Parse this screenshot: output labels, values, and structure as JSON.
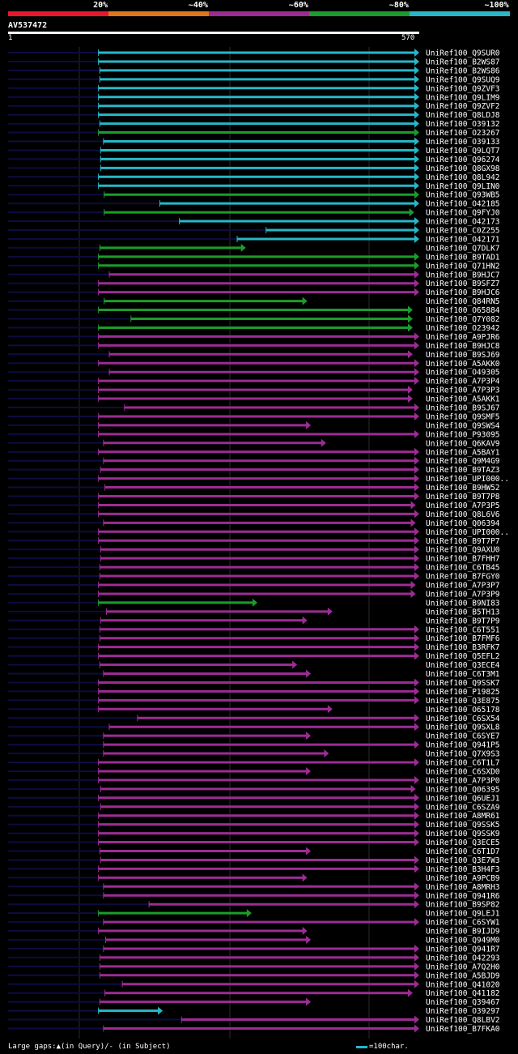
{
  "legend": {
    "labels": [
      "20%",
      "~40%",
      "~60%",
      "~80%",
      "~100%"
    ],
    "colors": [
      "#e8182c",
      "#e0761c",
      "#9c2c94",
      "#1c9c2c",
      "#27b7c8"
    ]
  },
  "query": {
    "id": "AV537472",
    "start": "1",
    "end": "570",
    "length": 570
  },
  "hits": [
    {
      "name": "UniRef100_Q9SUR0",
      "s": 126,
      "e": 570,
      "c": 4
    },
    {
      "name": "UniRef100_B2WS87",
      "s": 126,
      "e": 570,
      "c": 4
    },
    {
      "name": "UniRef100_B2WS86",
      "s": 128,
      "e": 570,
      "c": 4
    },
    {
      "name": "UniRef100_Q9SUQ9",
      "s": 128,
      "e": 570,
      "c": 4
    },
    {
      "name": "UniRef100_Q9ZVF3",
      "s": 126,
      "e": 570,
      "c": 4
    },
    {
      "name": "UniRef100_Q9LIM9",
      "s": 126,
      "e": 570,
      "c": 4
    },
    {
      "name": "UniRef100_Q9ZVF2",
      "s": 126,
      "e": 570,
      "c": 4
    },
    {
      "name": "UniRef100_Q8LDJ8",
      "s": 126,
      "e": 570,
      "c": 4
    },
    {
      "name": "UniRef100_O39132",
      "s": 128,
      "e": 570,
      "c": 4
    },
    {
      "name": "UniRef100_O23267",
      "s": 126,
      "e": 570,
      "c": 3
    },
    {
      "name": "UniRef100_O39133",
      "s": 133,
      "e": 570,
      "c": 4
    },
    {
      "name": "UniRef100_Q9LQT7",
      "s": 129,
      "e": 570,
      "c": 4
    },
    {
      "name": "UniRef100_Q96274",
      "s": 129,
      "e": 570,
      "c": 4
    },
    {
      "name": "UniRef100_Q8GX98",
      "s": 129,
      "e": 570,
      "c": 4
    },
    {
      "name": "UniRef100_Q8L942",
      "s": 126,
      "e": 570,
      "c": 4
    },
    {
      "name": "UniRef100_Q9LIN0",
      "s": 126,
      "e": 570,
      "c": 4
    },
    {
      "name": "UniRef100_Q93WB5",
      "s": 134,
      "e": 570,
      "c": 3
    },
    {
      "name": "UniRef100_O42185",
      "s": 211,
      "e": 570,
      "c": 4
    },
    {
      "name": "UniRef100_Q9FYJ0",
      "s": 134,
      "e": 563,
      "c": 3
    },
    {
      "name": "UniRef100_O42173",
      "s": 238,
      "e": 570,
      "c": 4
    },
    {
      "name": "UniRef100_C0Z255",
      "s": 358,
      "e": 570,
      "c": 4
    },
    {
      "name": "UniRef100_O42171",
      "s": 318,
      "e": 570,
      "c": 4
    },
    {
      "name": "UniRef100_Q7DLK7",
      "s": 128,
      "e": 330,
      "c": 3
    },
    {
      "name": "UniRef100_B9TAD1",
      "s": 126,
      "e": 570,
      "c": 3
    },
    {
      "name": "UniRef100_Q71HN2",
      "s": 126,
      "e": 570,
      "c": 3
    },
    {
      "name": "UniRef100_B9HJC7",
      "s": 141,
      "e": 570,
      "c": 2
    },
    {
      "name": "UniRef100_B9SFZ7",
      "s": 126,
      "e": 570,
      "c": 2
    },
    {
      "name": "UniRef100_B9HJC6",
      "s": 126,
      "e": 570,
      "c": 2
    },
    {
      "name": "UniRef100_Q84RN5",
      "s": 134,
      "e": 415,
      "c": 3
    },
    {
      "name": "UniRef100_O65884",
      "s": 126,
      "e": 561,
      "c": 3
    },
    {
      "name": "UniRef100_Q7Y082",
      "s": 171,
      "e": 561,
      "c": 3
    },
    {
      "name": "UniRef100_O23942",
      "s": 126,
      "e": 561,
      "c": 3
    },
    {
      "name": "UniRef100_A9PJR6",
      "s": 126,
      "e": 570,
      "c": 2
    },
    {
      "name": "UniRef100_B9HJC8",
      "s": 126,
      "e": 570,
      "c": 2
    },
    {
      "name": "UniRef100_B9SJ69",
      "s": 141,
      "e": 561,
      "c": 2
    },
    {
      "name": "UniRef100_A5AKK0",
      "s": 126,
      "e": 570,
      "c": 2
    },
    {
      "name": "UniRef100_O49305",
      "s": 141,
      "e": 570,
      "c": 2
    },
    {
      "name": "UniRef100_A7P3P4",
      "s": 126,
      "e": 570,
      "c": 2
    },
    {
      "name": "UniRef100_A7P3P3",
      "s": 126,
      "e": 561,
      "c": 2
    },
    {
      "name": "UniRef100_A5AKK1",
      "s": 126,
      "e": 561,
      "c": 2
    },
    {
      "name": "UniRef100_B9SJ67",
      "s": 162,
      "e": 570,
      "c": 2
    },
    {
      "name": "UniRef100_Q9SMF5",
      "s": 126,
      "e": 570,
      "c": 2
    },
    {
      "name": "UniRef100_Q9SWS4",
      "s": 126,
      "e": 420,
      "c": 2
    },
    {
      "name": "UniRef100_P93095",
      "s": 126,
      "e": 570,
      "c": 2
    },
    {
      "name": "UniRef100_Q6KAV9",
      "s": 133,
      "e": 441,
      "c": 2
    },
    {
      "name": "UniRef100_A5BAY1",
      "s": 126,
      "e": 570,
      "c": 2
    },
    {
      "name": "UniRef100_Q9M4G9",
      "s": 133,
      "e": 570,
      "c": 2
    },
    {
      "name": "UniRef100_B9TAZ3",
      "s": 129,
      "e": 570,
      "c": 2
    },
    {
      "name": "UniRef100_UPI000..",
      "s": 126,
      "e": 570,
      "c": 2
    },
    {
      "name": "UniRef100_B9HW52",
      "s": 135,
      "e": 570,
      "c": 2
    },
    {
      "name": "UniRef100_B9T7P8",
      "s": 126,
      "e": 570,
      "c": 2
    },
    {
      "name": "UniRef100_A7P3P5",
      "s": 126,
      "e": 565,
      "c": 2
    },
    {
      "name": "UniRef100_Q8L6V6",
      "s": 126,
      "e": 570,
      "c": 2
    },
    {
      "name": "UniRef100_Q06394",
      "s": 133,
      "e": 565,
      "c": 2
    },
    {
      "name": "UniRef100_UPI000..",
      "s": 126,
      "e": 570,
      "c": 2
    },
    {
      "name": "UniRef100_B9T7P7",
      "s": 126,
      "e": 570,
      "c": 2
    },
    {
      "name": "UniRef100_Q9AXU0",
      "s": 129,
      "e": 570,
      "c": 2
    },
    {
      "name": "UniRef100_B7FHH7",
      "s": 129,
      "e": 570,
      "c": 2
    },
    {
      "name": "UniRef100_C6TB45",
      "s": 128,
      "e": 570,
      "c": 2
    },
    {
      "name": "UniRef100_B7FGY0",
      "s": 128,
      "e": 570,
      "c": 2
    },
    {
      "name": "UniRef100_A7P3P7",
      "s": 126,
      "e": 565,
      "c": 2
    },
    {
      "name": "UniRef100_A7P3P9",
      "s": 126,
      "e": 565,
      "c": 2
    },
    {
      "name": "UniRef100_B9NI83",
      "s": 126,
      "e": 346,
      "c": 3
    },
    {
      "name": "UniRef100_B5TH13",
      "s": 137,
      "e": 450,
      "c": 2
    },
    {
      "name": "UniRef100_B9T7P9",
      "s": 129,
      "e": 415,
      "c": 2
    },
    {
      "name": "UniRef100_C6T551",
      "s": 128,
      "e": 570,
      "c": 2
    },
    {
      "name": "UniRef100_B7FMF6",
      "s": 128,
      "e": 570,
      "c": 2
    },
    {
      "name": "UniRef100_B3RFK7",
      "s": 126,
      "e": 570,
      "c": 2
    },
    {
      "name": "UniRef100_Q5EFL2",
      "s": 126,
      "e": 570,
      "c": 2
    },
    {
      "name": "UniRef100_Q3ECE4",
      "s": 128,
      "e": 401,
      "c": 2
    },
    {
      "name": "UniRef100_C6T3M1",
      "s": 133,
      "e": 420,
      "c": 2
    },
    {
      "name": "UniRef100_Q9SSK7",
      "s": 126,
      "e": 570,
      "c": 2
    },
    {
      "name": "UniRef100_P19825",
      "s": 126,
      "e": 570,
      "c": 2
    },
    {
      "name": "UniRef100_Q3E875",
      "s": 126,
      "e": 570,
      "c": 2
    },
    {
      "name": "UniRef100_O65178",
      "s": 126,
      "e": 450,
      "c": 2
    },
    {
      "name": "UniRef100_C6SX54",
      "s": 180,
      "e": 570,
      "c": 2
    },
    {
      "name": "UniRef100_Q9SXL8",
      "s": 141,
      "e": 570,
      "c": 2
    },
    {
      "name": "UniRef100_C6SYE7",
      "s": 133,
      "e": 420,
      "c": 2
    },
    {
      "name": "UniRef100_Q941P5",
      "s": 133,
      "e": 570,
      "c": 2
    },
    {
      "name": "UniRef100_Q7X9S3",
      "s": 133,
      "e": 445,
      "c": 2
    },
    {
      "name": "UniRef100_C6T1L7",
      "s": 126,
      "e": 570,
      "c": 2
    },
    {
      "name": "UniRef100_C6SXD0",
      "s": 126,
      "e": 420,
      "c": 2
    },
    {
      "name": "UniRef100_A7P3P0",
      "s": 126,
      "e": 570,
      "c": 2
    },
    {
      "name": "UniRef100_Q06395",
      "s": 129,
      "e": 565,
      "c": 2
    },
    {
      "name": "UniRef100_Q6UEJ1",
      "s": 126,
      "e": 570,
      "c": 2
    },
    {
      "name": "UniRef100_C6SZA9",
      "s": 129,
      "e": 570,
      "c": 2
    },
    {
      "name": "UniRef100_A8MR61",
      "s": 126,
      "e": 570,
      "c": 2
    },
    {
      "name": "UniRef100_Q9SSK5",
      "s": 126,
      "e": 570,
      "c": 2
    },
    {
      "name": "UniRef100_Q9SSK9",
      "s": 126,
      "e": 570,
      "c": 2
    },
    {
      "name": "UniRef100_Q3ECE5",
      "s": 126,
      "e": 570,
      "c": 2
    },
    {
      "name": "UniRef100_C6T1D7",
      "s": 128,
      "e": 420,
      "c": 2
    },
    {
      "name": "UniRef100_Q3E7W3",
      "s": 129,
      "e": 570,
      "c": 2
    },
    {
      "name": "UniRef100_B3H4F3",
      "s": 126,
      "e": 570,
      "c": 2
    },
    {
      "name": "UniRef100_A9PCB9",
      "s": 126,
      "e": 415,
      "c": 2
    },
    {
      "name": "UniRef100_A8MRH3",
      "s": 133,
      "e": 570,
      "c": 2
    },
    {
      "name": "UniRef100_Q941R6",
      "s": 133,
      "e": 570,
      "c": 2
    },
    {
      "name": "UniRef100_B9SP82",
      "s": 196,
      "e": 570,
      "c": 2
    },
    {
      "name": "UniRef100_Q9LEJ1",
      "s": 126,
      "e": 338,
      "c": 3
    },
    {
      "name": "UniRef100_C6SYW1",
      "s": 133,
      "e": 570,
      "c": 2
    },
    {
      "name": "UniRef100_B9IJD9",
      "s": 126,
      "e": 415,
      "c": 2
    },
    {
      "name": "UniRef100_Q949M0",
      "s": 136,
      "e": 420,
      "c": 2
    },
    {
      "name": "UniRef100_Q941R7",
      "s": 133,
      "e": 570,
      "c": 2
    },
    {
      "name": "UniRef100_O42293",
      "s": 128,
      "e": 570,
      "c": 2
    },
    {
      "name": "UniRef100_A7Q2H0",
      "s": 128,
      "e": 570,
      "c": 2
    },
    {
      "name": "UniRef100_A5BJD9",
      "s": 128,
      "e": 570,
      "c": 2
    },
    {
      "name": "UniRef100_Q41020",
      "s": 159,
      "e": 570,
      "c": 2
    },
    {
      "name": "UniRef100_Q41182",
      "s": 135,
      "e": 561,
      "c": 2
    },
    {
      "name": "UniRef100_Q39467",
      "s": 128,
      "e": 420,
      "c": 2
    },
    {
      "name": "UniRef100_O39297",
      "s": 126,
      "e": 215,
      "c": 4
    },
    {
      "name": "UniRef100_Q8LBV2",
      "s": 241,
      "e": 570,
      "c": 2
    },
    {
      "name": "UniRef100_B7FKA0",
      "s": 133,
      "e": 570,
      "c": 2
    }
  ],
  "footer": {
    "gaps_text": "Large gaps:▲(in Query)/- (in Subject)",
    "scale_text": "=100char."
  }
}
